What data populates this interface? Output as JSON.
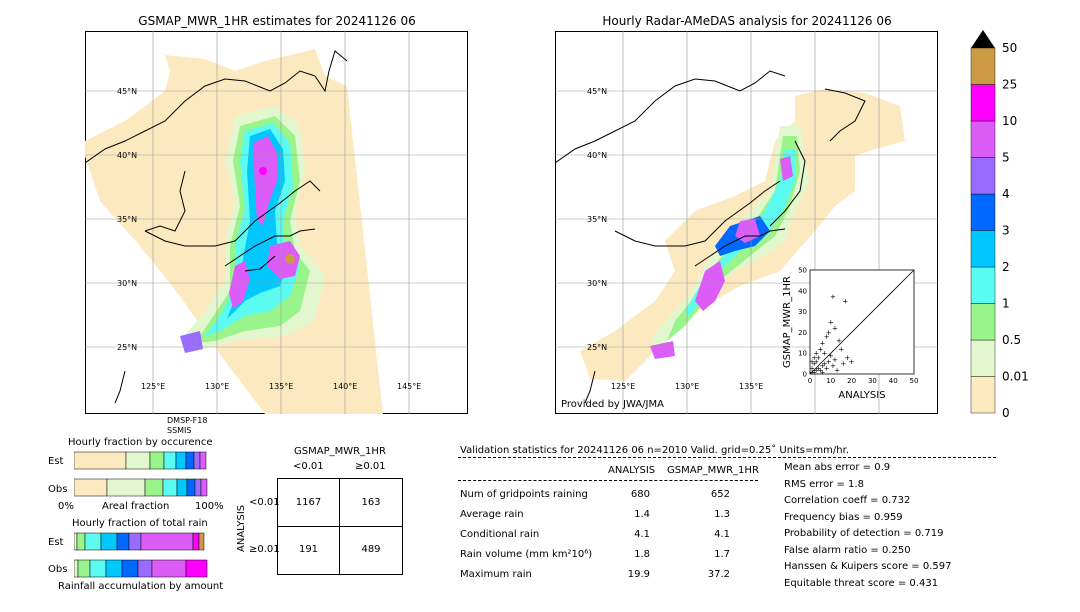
{
  "chart_data": [
    {
      "type": "map",
      "title": "GSMAP_MWR_1HR estimates for 20241126 06",
      "lat_labels": [
        "45°N",
        "40°N",
        "35°N",
        "30°N",
        "25°N"
      ],
      "lon_labels": [
        "125°E",
        "130°E",
        "135°E",
        "140°E",
        "145°E"
      ],
      "sensor_note": [
        "DMSP-F18",
        "SSMIS"
      ]
    },
    {
      "type": "map",
      "title": "Hourly Radar-AMeDAS analysis for 20241126 06",
      "lat_labels": [
        "45°N",
        "40°N",
        "35°N",
        "30°N",
        "25°N"
      ],
      "lon_labels": [
        "125°E",
        "130°E",
        "135°E"
      ],
      "credit": "Provided by JWA/JMA"
    },
    {
      "type": "scatter",
      "xlabel": "ANALYSIS",
      "ylabel": "GSMAP_MWR_1HR",
      "xlim": [
        0,
        50
      ],
      "ylim": [
        0,
        50
      ],
      "ticks": [
        "0",
        "10",
        "20",
        "30",
        "40",
        "50"
      ],
      "points": [
        [
          1,
          1
        ],
        [
          2,
          1
        ],
        [
          3,
          2
        ],
        [
          1,
          3
        ],
        [
          4,
          3
        ],
        [
          5,
          2
        ],
        [
          2,
          5
        ],
        [
          6,
          4
        ],
        [
          3,
          6
        ],
        [
          7,
          5
        ],
        [
          8,
          3
        ],
        [
          4,
          8
        ],
        [
          9,
          6
        ],
        [
          10,
          9
        ],
        [
          12,
          7
        ],
        [
          5,
          12
        ],
        [
          6,
          15
        ],
        [
          8,
          18
        ],
        [
          10,
          25
        ],
        [
          12,
          22
        ],
        [
          15,
          12
        ],
        [
          18,
          8
        ],
        [
          19.9,
          6
        ],
        [
          11,
          37.2
        ],
        [
          17,
          35
        ],
        [
          9,
          20
        ],
        [
          14,
          16
        ],
        [
          3,
          10
        ],
        [
          2,
          8
        ],
        [
          7,
          10
        ],
        [
          11,
          4
        ],
        [
          13,
          2
        ],
        [
          16,
          5
        ],
        [
          1,
          6
        ],
        [
          6,
          1
        ]
      ]
    },
    {
      "type": "colorbar",
      "labels": [
        "0",
        "0.01",
        "0.5",
        "1",
        "2",
        "3",
        "4",
        "5",
        "10",
        "25",
        "50"
      ],
      "colors": [
        "#fde9c0",
        "#e3f7cf",
        "#99f58b",
        "#5bfbf2",
        "#00c8ff",
        "#0068ff",
        "#9a6bff",
        "#dc5cf8",
        "#ff00ff",
        "#cc9944"
      ],
      "extend_color": "#000000"
    },
    {
      "type": "bar",
      "title": "Hourly fraction by occurence",
      "categories": [
        "Est",
        "Obs"
      ],
      "xlabel": "Areal fraction",
      "tick_labels": [
        "0%",
        "100%"
      ]
    },
    {
      "type": "bar",
      "title": "Hourly fraction of total rain",
      "categories": [
        "Est",
        "Obs"
      ],
      "xlabel": "Rainfall accumulation by amount"
    },
    {
      "type": "table",
      "title": "GSMAP_MWR_1HR",
      "col_headers": [
        "<0.01",
        "≥0.01"
      ],
      "row_label": "ANALYSIS",
      "row_headers": [
        "<0.01",
        "≥0.01"
      ],
      "cells": [
        [
          "1167",
          "163"
        ],
        [
          "191",
          "489"
        ]
      ]
    }
  ],
  "validation": {
    "heading": "Validation statistics for 20241126 06  n=2010 Valid. grid=0.25˚ Units=mm/hr.",
    "col_analysis": "ANALYSIS",
    "col_gsmap": "GSMAP_MWR_1HR",
    "rows": [
      {
        "label": "Num of gridpoints raining",
        "analysis": "680",
        "gsmap": "652"
      },
      {
        "label": "Average rain",
        "analysis": "1.4",
        "gsmap": "1.3"
      },
      {
        "label": "Conditional rain",
        "analysis": "4.1",
        "gsmap": "4.1"
      },
      {
        "label": "Rain volume (mm km²10⁶)",
        "analysis": "1.8",
        "gsmap": "1.7"
      },
      {
        "label": "Maximum rain",
        "analysis": "19.9",
        "gsmap": "37.2"
      }
    ],
    "scores": [
      "Mean abs error =    0.9",
      "RMS error =    1.8",
      "Correlation coeff =  0.732",
      "Frequency bias =  0.959",
      "Probability of detection =  0.719",
      "False alarm ratio =  0.250",
      "Hanssen & Kuipers score =  0.597",
      "Equitable threat score =  0.431"
    ]
  }
}
